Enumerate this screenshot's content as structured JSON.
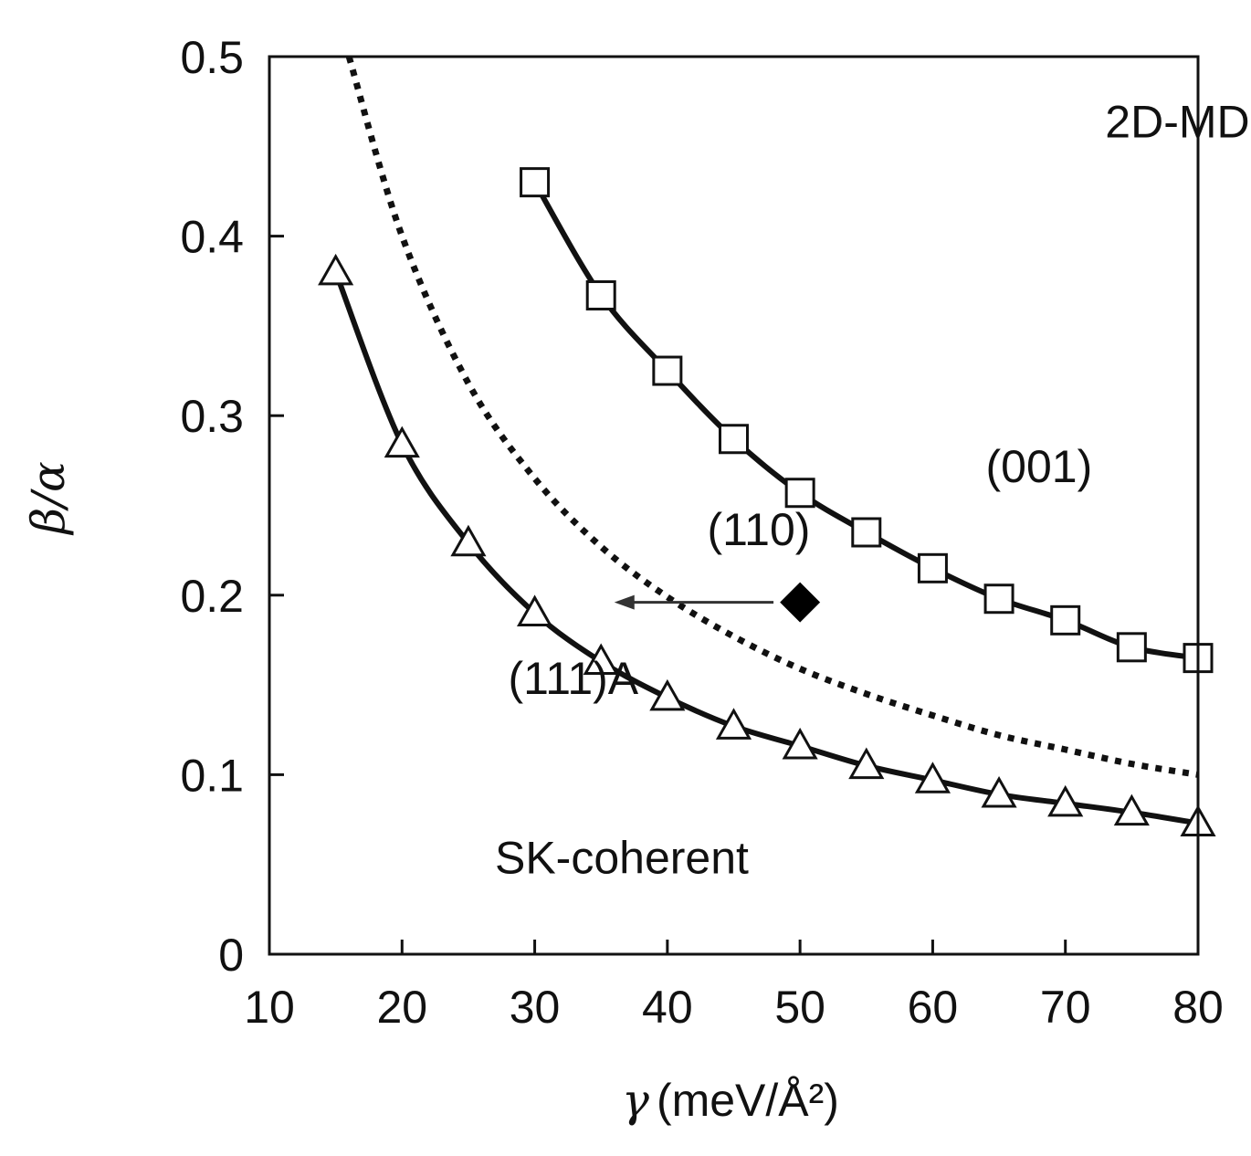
{
  "chart_data": {
    "type": "line",
    "title": "",
    "xlabel_symbol": "γ",
    "xlabel_units": "(meV/Å²)",
    "ylabel": "β/α",
    "xlim": [
      10,
      80
    ],
    "ylim": [
      0,
      0.5
    ],
    "x_ticks": [
      10,
      20,
      30,
      40,
      50,
      60,
      70,
      80
    ],
    "y_ticks": [
      0,
      0.1,
      0.2,
      0.3,
      0.4,
      0.5
    ],
    "x_tick_labels": [
      "10",
      "20",
      "30",
      "40",
      "50",
      "60",
      "70",
      "80"
    ],
    "y_tick_labels": [
      "0",
      "0.1",
      "0.2",
      "0.3",
      "0.4",
      "0.5"
    ],
    "grid": false,
    "series": [
      {
        "name": "(001)",
        "marker": "square",
        "line": "solid",
        "x": [
          30,
          35,
          40,
          45,
          50,
          55,
          60,
          65,
          70,
          75,
          80
        ],
        "y": [
          0.43,
          0.367,
          0.325,
          0.287,
          0.257,
          0.235,
          0.215,
          0.198,
          0.186,
          0.171,
          0.165
        ]
      },
      {
        "name": "(110)",
        "marker": "none",
        "line": "dotted",
        "x": [
          16,
          20,
          25,
          30,
          35,
          40,
          45,
          50,
          55,
          60,
          65,
          70,
          75,
          80
        ],
        "y": [
          0.5,
          0.4,
          0.318,
          0.265,
          0.227,
          0.199,
          0.177,
          0.159,
          0.145,
          0.133,
          0.122,
          0.114,
          0.106,
          0.1
        ]
      },
      {
        "name": "(111)A",
        "marker": "triangle",
        "line": "solid",
        "x": [
          15,
          20,
          25,
          30,
          35,
          40,
          45,
          50,
          55,
          60,
          65,
          70,
          75,
          80
        ],
        "y": [
          0.38,
          0.284,
          0.229,
          0.19,
          0.163,
          0.143,
          0.127,
          0.116,
          0.105,
          0.097,
          0.089,
          0.084,
          0.079,
          0.073
        ]
      }
    ],
    "single_point": {
      "x": 50,
      "y": 0.196,
      "marker": "diamond-filled"
    },
    "arrow": {
      "from": [
        48,
        0.196
      ],
      "to": [
        36,
        0.196
      ]
    },
    "annotations": [
      {
        "text": "2D-MD",
        "x": 73,
        "y": 0.455
      },
      {
        "text": "(001)",
        "x": 64,
        "y": 0.263
      },
      {
        "text": "(110)",
        "x": 43,
        "y": 0.228
      },
      {
        "text": "(111)A",
        "x": 28,
        "y": 0.145
      },
      {
        "text": "SK-coherent",
        "x": 27,
        "y": 0.045
      }
    ]
  }
}
